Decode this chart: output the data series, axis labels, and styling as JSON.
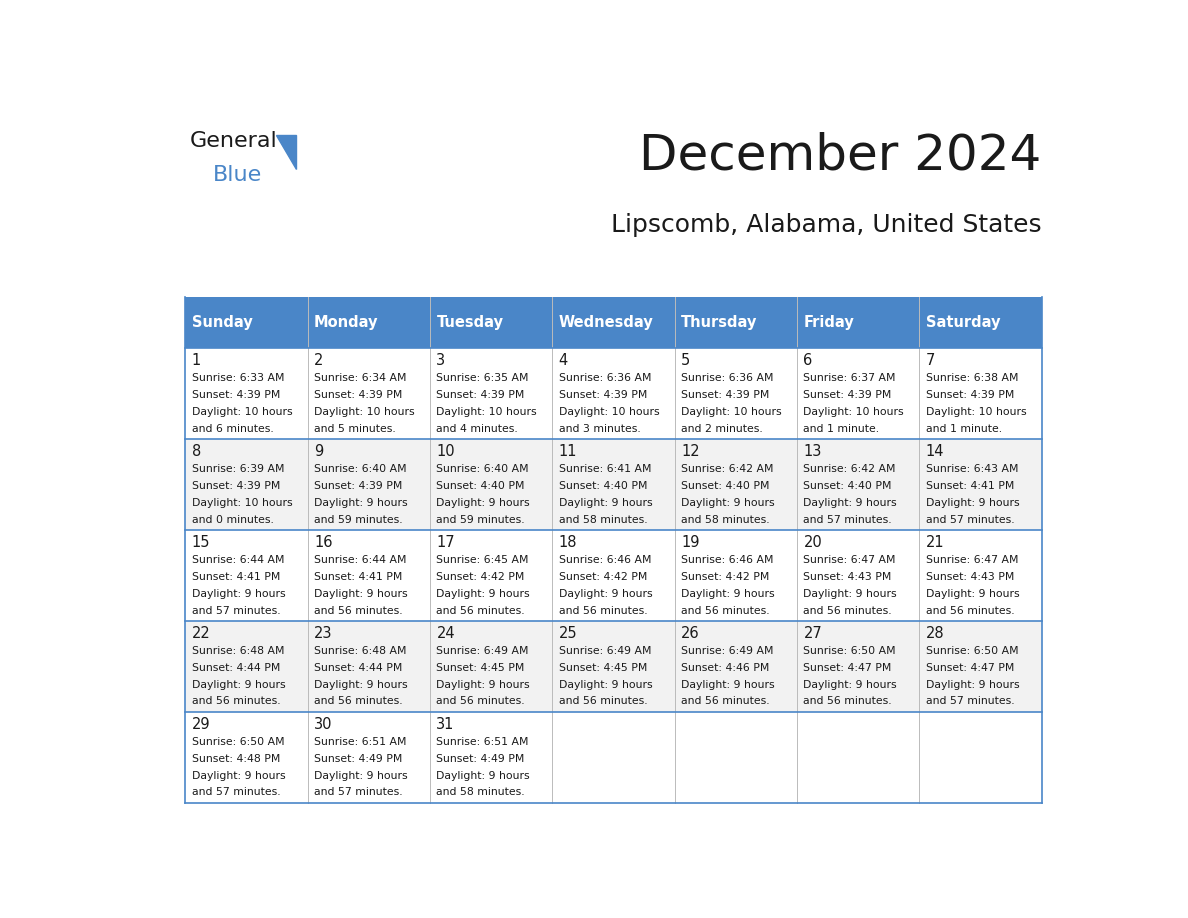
{
  "title": "December 2024",
  "subtitle": "Lipscomb, Alabama, United States",
  "header_color": "#4A86C8",
  "header_text_color": "#FFFFFF",
  "cell_bg_even": "#FFFFFF",
  "cell_bg_odd": "#F2F2F2",
  "border_color": "#4A86C8",
  "day_names": [
    "Sunday",
    "Monday",
    "Tuesday",
    "Wednesday",
    "Thursday",
    "Friday",
    "Saturday"
  ],
  "days": [
    {
      "day": 1,
      "col": 0,
      "row": 0,
      "sunrise": "6:33 AM",
      "sunset": "4:39 PM",
      "daylight": "10 hours\nand 6 minutes."
    },
    {
      "day": 2,
      "col": 1,
      "row": 0,
      "sunrise": "6:34 AM",
      "sunset": "4:39 PM",
      "daylight": "10 hours\nand 5 minutes."
    },
    {
      "day": 3,
      "col": 2,
      "row": 0,
      "sunrise": "6:35 AM",
      "sunset": "4:39 PM",
      "daylight": "10 hours\nand 4 minutes."
    },
    {
      "day": 4,
      "col": 3,
      "row": 0,
      "sunrise": "6:36 AM",
      "sunset": "4:39 PM",
      "daylight": "10 hours\nand 3 minutes."
    },
    {
      "day": 5,
      "col": 4,
      "row": 0,
      "sunrise": "6:36 AM",
      "sunset": "4:39 PM",
      "daylight": "10 hours\nand 2 minutes."
    },
    {
      "day": 6,
      "col": 5,
      "row": 0,
      "sunrise": "6:37 AM",
      "sunset": "4:39 PM",
      "daylight": "10 hours\nand 1 minute."
    },
    {
      "day": 7,
      "col": 6,
      "row": 0,
      "sunrise": "6:38 AM",
      "sunset": "4:39 PM",
      "daylight": "10 hours\nand 1 minute."
    },
    {
      "day": 8,
      "col": 0,
      "row": 1,
      "sunrise": "6:39 AM",
      "sunset": "4:39 PM",
      "daylight": "10 hours\nand 0 minutes."
    },
    {
      "day": 9,
      "col": 1,
      "row": 1,
      "sunrise": "6:40 AM",
      "sunset": "4:39 PM",
      "daylight": "9 hours\nand 59 minutes."
    },
    {
      "day": 10,
      "col": 2,
      "row": 1,
      "sunrise": "6:40 AM",
      "sunset": "4:40 PM",
      "daylight": "9 hours\nand 59 minutes."
    },
    {
      "day": 11,
      "col": 3,
      "row": 1,
      "sunrise": "6:41 AM",
      "sunset": "4:40 PM",
      "daylight": "9 hours\nand 58 minutes."
    },
    {
      "day": 12,
      "col": 4,
      "row": 1,
      "sunrise": "6:42 AM",
      "sunset": "4:40 PM",
      "daylight": "9 hours\nand 58 minutes."
    },
    {
      "day": 13,
      "col": 5,
      "row": 1,
      "sunrise": "6:42 AM",
      "sunset": "4:40 PM",
      "daylight": "9 hours\nand 57 minutes."
    },
    {
      "day": 14,
      "col": 6,
      "row": 1,
      "sunrise": "6:43 AM",
      "sunset": "4:41 PM",
      "daylight": "9 hours\nand 57 minutes."
    },
    {
      "day": 15,
      "col": 0,
      "row": 2,
      "sunrise": "6:44 AM",
      "sunset": "4:41 PM",
      "daylight": "9 hours\nand 57 minutes."
    },
    {
      "day": 16,
      "col": 1,
      "row": 2,
      "sunrise": "6:44 AM",
      "sunset": "4:41 PM",
      "daylight": "9 hours\nand 56 minutes."
    },
    {
      "day": 17,
      "col": 2,
      "row": 2,
      "sunrise": "6:45 AM",
      "sunset": "4:42 PM",
      "daylight": "9 hours\nand 56 minutes."
    },
    {
      "day": 18,
      "col": 3,
      "row": 2,
      "sunrise": "6:46 AM",
      "sunset": "4:42 PM",
      "daylight": "9 hours\nand 56 minutes."
    },
    {
      "day": 19,
      "col": 4,
      "row": 2,
      "sunrise": "6:46 AM",
      "sunset": "4:42 PM",
      "daylight": "9 hours\nand 56 minutes."
    },
    {
      "day": 20,
      "col": 5,
      "row": 2,
      "sunrise": "6:47 AM",
      "sunset": "4:43 PM",
      "daylight": "9 hours\nand 56 minutes."
    },
    {
      "day": 21,
      "col": 6,
      "row": 2,
      "sunrise": "6:47 AM",
      "sunset": "4:43 PM",
      "daylight": "9 hours\nand 56 minutes."
    },
    {
      "day": 22,
      "col": 0,
      "row": 3,
      "sunrise": "6:48 AM",
      "sunset": "4:44 PM",
      "daylight": "9 hours\nand 56 minutes."
    },
    {
      "day": 23,
      "col": 1,
      "row": 3,
      "sunrise": "6:48 AM",
      "sunset": "4:44 PM",
      "daylight": "9 hours\nand 56 minutes."
    },
    {
      "day": 24,
      "col": 2,
      "row": 3,
      "sunrise": "6:49 AM",
      "sunset": "4:45 PM",
      "daylight": "9 hours\nand 56 minutes."
    },
    {
      "day": 25,
      "col": 3,
      "row": 3,
      "sunrise": "6:49 AM",
      "sunset": "4:45 PM",
      "daylight": "9 hours\nand 56 minutes."
    },
    {
      "day": 26,
      "col": 4,
      "row": 3,
      "sunrise": "6:49 AM",
      "sunset": "4:46 PM",
      "daylight": "9 hours\nand 56 minutes."
    },
    {
      "day": 27,
      "col": 5,
      "row": 3,
      "sunrise": "6:50 AM",
      "sunset": "4:47 PM",
      "daylight": "9 hours\nand 56 minutes."
    },
    {
      "day": 28,
      "col": 6,
      "row": 3,
      "sunrise": "6:50 AM",
      "sunset": "4:47 PM",
      "daylight": "9 hours\nand 57 minutes."
    },
    {
      "day": 29,
      "col": 0,
      "row": 4,
      "sunrise": "6:50 AM",
      "sunset": "4:48 PM",
      "daylight": "9 hours\nand 57 minutes."
    },
    {
      "day": 30,
      "col": 1,
      "row": 4,
      "sunrise": "6:51 AM",
      "sunset": "4:49 PM",
      "daylight": "9 hours\nand 57 minutes."
    },
    {
      "day": 31,
      "col": 2,
      "row": 4,
      "sunrise": "6:51 AM",
      "sunset": "4:49 PM",
      "daylight": "9 hours\nand 58 minutes."
    }
  ],
  "num_rows": 5,
  "logo_text_general": "General",
  "logo_text_blue": "Blue",
  "logo_color_general": "#1a1a1a",
  "logo_color_blue": "#4A86C8",
  "logo_triangle_color": "#4A86C8"
}
